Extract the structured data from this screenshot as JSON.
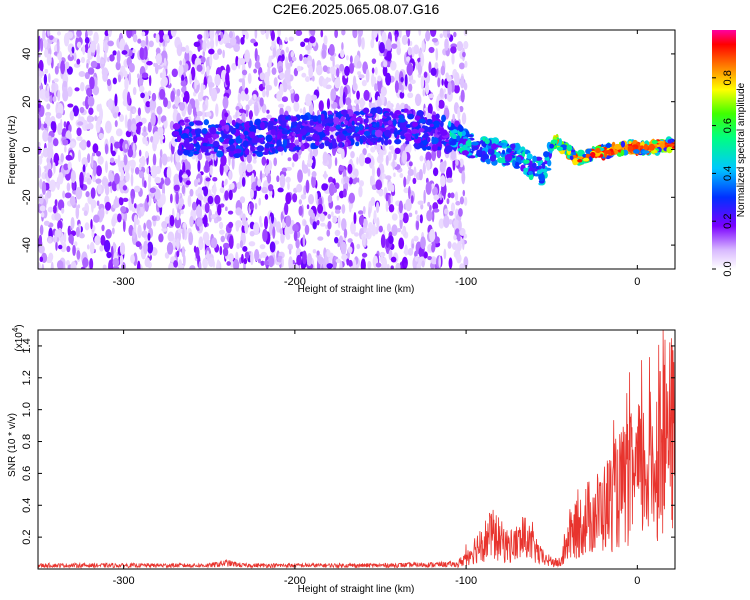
{
  "title": "C2E6.2025.065.08.07.G16",
  "chart_data": [
    {
      "type": "heatmap",
      "xlabel": "Height of straight line (km)",
      "ylabel": "Frequency (Hz)",
      "xlim": [
        -350,
        22
      ],
      "ylim": [
        -50,
        50
      ],
      "xticks": [
        -300,
        -200,
        -100,
        0
      ],
      "yticks": [
        -40,
        -20,
        0,
        20,
        40
      ],
      "colorbar": {
        "label": "Normalized spectral amplitude",
        "range": [
          0,
          1
        ],
        "ticks": [
          "0.0",
          "0.2",
          "0.4",
          "0.6",
          "0.8"
        ],
        "colormap": "rainbow (white to violet, blue, cyan, green, yellow, red, magenta)"
      },
      "ridge": [
        {
          "x": -260,
          "freq": 5
        },
        {
          "x": -230,
          "freq": 4
        },
        {
          "x": -200,
          "freq": 7
        },
        {
          "x": -170,
          "freq": 9
        },
        {
          "x": -140,
          "freq": 10
        },
        {
          "x": -110,
          "freq": 6
        },
        {
          "x": -90,
          "freq": 0
        },
        {
          "x": -70,
          "freq": -3
        },
        {
          "x": -55,
          "freq": -10
        },
        {
          "x": -48,
          "freq": 4
        },
        {
          "x": -35,
          "freq": -4
        },
        {
          "x": -20,
          "freq": -1
        },
        {
          "x": -5,
          "freq": 1
        },
        {
          "x": 10,
          "freq": 1
        },
        {
          "x": 20,
          "freq": 2
        }
      ]
    },
    {
      "type": "line",
      "xlabel": "Height of straight line (km)",
      "ylabel": "SNR (10 * v/v)",
      "exponent_label": "(x10",
      "exponent_sup": "4",
      "exponent_close": ")",
      "xlim": [
        -350,
        22
      ],
      "ylim": [
        0,
        1.5
      ],
      "xticks": [
        -300,
        -200,
        -100,
        0
      ],
      "yticks": [
        "0.2",
        "0.4",
        "0.6",
        "0.8",
        "1.0",
        "1.2",
        "1.4"
      ],
      "color": "#e8342e",
      "envelope": [
        {
          "x": -350,
          "y": 0.03
        },
        {
          "x": -250,
          "y": 0.03
        },
        {
          "x": -240,
          "y": 0.05
        },
        {
          "x": -230,
          "y": 0.03
        },
        {
          "x": -150,
          "y": 0.03
        },
        {
          "x": -105,
          "y": 0.04
        },
        {
          "x": -95,
          "y": 0.2
        },
        {
          "x": -85,
          "y": 0.35
        },
        {
          "x": -75,
          "y": 0.22
        },
        {
          "x": -65,
          "y": 0.3
        },
        {
          "x": -55,
          "y": 0.1
        },
        {
          "x": -45,
          "y": 0.05
        },
        {
          "x": -40,
          "y": 0.3
        },
        {
          "x": -30,
          "y": 0.5
        },
        {
          "x": -20,
          "y": 0.6
        },
        {
          "x": -10,
          "y": 0.8
        },
        {
          "x": 0,
          "y": 0.95
        },
        {
          "x": 10,
          "y": 1.05
        },
        {
          "x": 15,
          "y": 1.3
        },
        {
          "x": 22,
          "y": 1.35
        }
      ]
    }
  ]
}
